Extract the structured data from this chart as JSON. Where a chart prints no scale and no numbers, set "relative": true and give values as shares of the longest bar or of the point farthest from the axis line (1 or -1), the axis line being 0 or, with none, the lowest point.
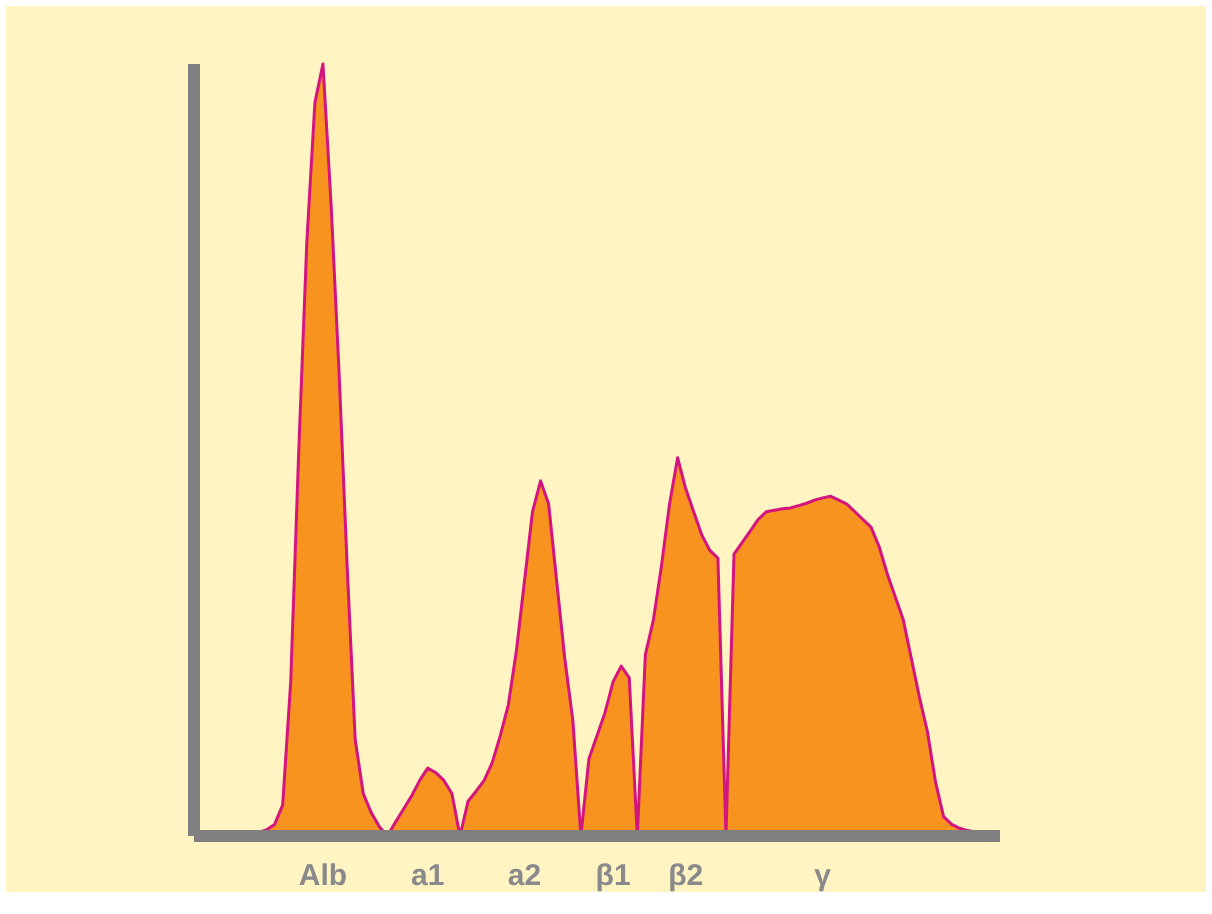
{
  "chart_data": {
    "type": "area",
    "relative": true,
    "categories": [
      null,
      null,
      null,
      null,
      null,
      null,
      null,
      null,
      null,
      null,
      null,
      null,
      null,
      null,
      null,
      null,
      "Alb",
      null,
      null,
      null,
      null,
      null,
      null,
      null,
      null,
      null,
      null,
      null,
      null,
      "a1",
      null,
      null,
      null,
      null,
      null,
      null,
      null,
      null,
      null,
      null,
      null,
      "a2",
      null,
      null,
      null,
      null,
      null,
      null,
      null,
      null,
      null,
      null,
      "β1",
      null,
      null,
      null,
      null,
      null,
      null,
      null,
      null,
      "β2",
      null,
      null,
      null,
      null,
      null,
      null,
      null,
      null,
      null,
      null,
      null,
      null,
      null,
      null,
      null,
      null,
      "γ",
      null,
      null,
      null,
      null,
      null,
      null,
      null,
      null,
      null,
      null,
      null,
      null,
      null,
      null,
      null,
      null,
      null,
      null,
      null,
      null,
      null,
      null
    ],
    "series": [
      {
        "color": "#f7931e",
        "values": [
          0.003,
          0.003,
          0.003,
          0.003,
          0.004,
          0.004,
          0.004,
          0.005,
          0.005,
          0.008,
          0.015,
          0.04,
          0.2,
          0.5,
          0.77,
          0.95,
          1,
          0.82,
          0.6,
          0.35,
          0.125,
          0.055,
          0.03,
          0.012,
          0,
          0.018,
          0.035,
          0.052,
          0.072,
          0.088,
          0.082,
          0.072,
          0.055,
          0,
          0.045,
          0.058,
          0.072,
          0.095,
          0.13,
          0.17,
          0.24,
          0.33,
          0.42,
          0.46,
          0.43,
          0.33,
          0.23,
          0.15,
          0,
          0.1,
          0.13,
          0.16,
          0.2,
          0.22,
          0.205,
          0,
          0.235,
          0.28,
          0.35,
          0.43,
          0.49,
          0.45,
          0.42,
          0.39,
          0.37,
          0.36,
          0,
          0.365,
          0.38,
          0.395,
          0.41,
          0.42,
          0.422,
          0.424,
          0.425,
          0.428,
          0.431,
          0.435,
          0.438,
          0.44,
          0.435,
          0.43,
          0.42,
          0.41,
          0.4,
          0.375,
          0.34,
          0.31,
          0.28,
          0.23,
          0.18,
          0.135,
          0.07,
          0.025,
          0.015,
          0.01,
          0.007,
          0.005,
          0.003,
          0.001,
          0
        ]
      }
    ]
  }
}
